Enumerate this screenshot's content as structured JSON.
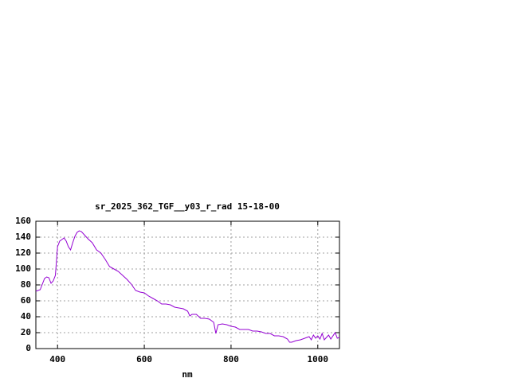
{
  "chart_data": {
    "type": "line",
    "title": "sr_2025_362_TGF__y03_r_rad 15-18-00",
    "x_label": "nm",
    "x": [
      350,
      360,
      370,
      375,
      380,
      385,
      390,
      395,
      400,
      405,
      410,
      415,
      420,
      425,
      430,
      435,
      440,
      445,
      450,
      455,
      460,
      470,
      480,
      490,
      500,
      510,
      520,
      530,
      540,
      550,
      560,
      570,
      580,
      590,
      600,
      610,
      620,
      630,
      640,
      650,
      660,
      670,
      680,
      690,
      700,
      705,
      710,
      720,
      730,
      740,
      750,
      760,
      765,
      770,
      780,
      790,
      800,
      810,
      820,
      830,
      840,
      850,
      860,
      870,
      880,
      890,
      900,
      910,
      920,
      930,
      935,
      940,
      950,
      960,
      970,
      980,
      985,
      990,
      995,
      1000,
      1005,
      1010,
      1015,
      1020,
      1025,
      1030,
      1040,
      1045,
      1050
    ],
    "values": [
      72,
      74,
      88,
      90,
      89,
      82,
      85,
      92,
      128,
      135,
      137,
      139,
      135,
      128,
      124,
      133,
      141,
      146,
      148,
      147,
      144,
      138,
      133,
      124,
      120,
      112,
      103,
      100,
      97,
      92,
      87,
      81,
      73,
      71,
      70,
      66,
      63,
      60,
      56,
      56,
      55,
      52,
      51,
      50,
      47,
      41,
      43,
      43,
      38,
      38,
      37,
      33,
      19,
      30,
      31,
      30,
      28,
      27,
      24,
      24,
      24,
      22,
      22,
      21,
      19,
      19,
      16,
      16,
      15,
      12,
      8,
      8,
      10,
      11,
      13,
      15,
      11,
      17,
      13,
      16,
      12,
      19,
      11,
      14,
      17,
      12,
      20,
      13,
      14
    ],
    "color": "#9400d3",
    "xlim": [
      350,
      1050
    ],
    "xticks": [
      400,
      600,
      800,
      1000
    ],
    "ylim": [
      0,
      160
    ],
    "yticks": [
      0,
      20,
      40,
      60,
      80,
      100,
      120,
      140,
      160
    ],
    "grid": true
  }
}
